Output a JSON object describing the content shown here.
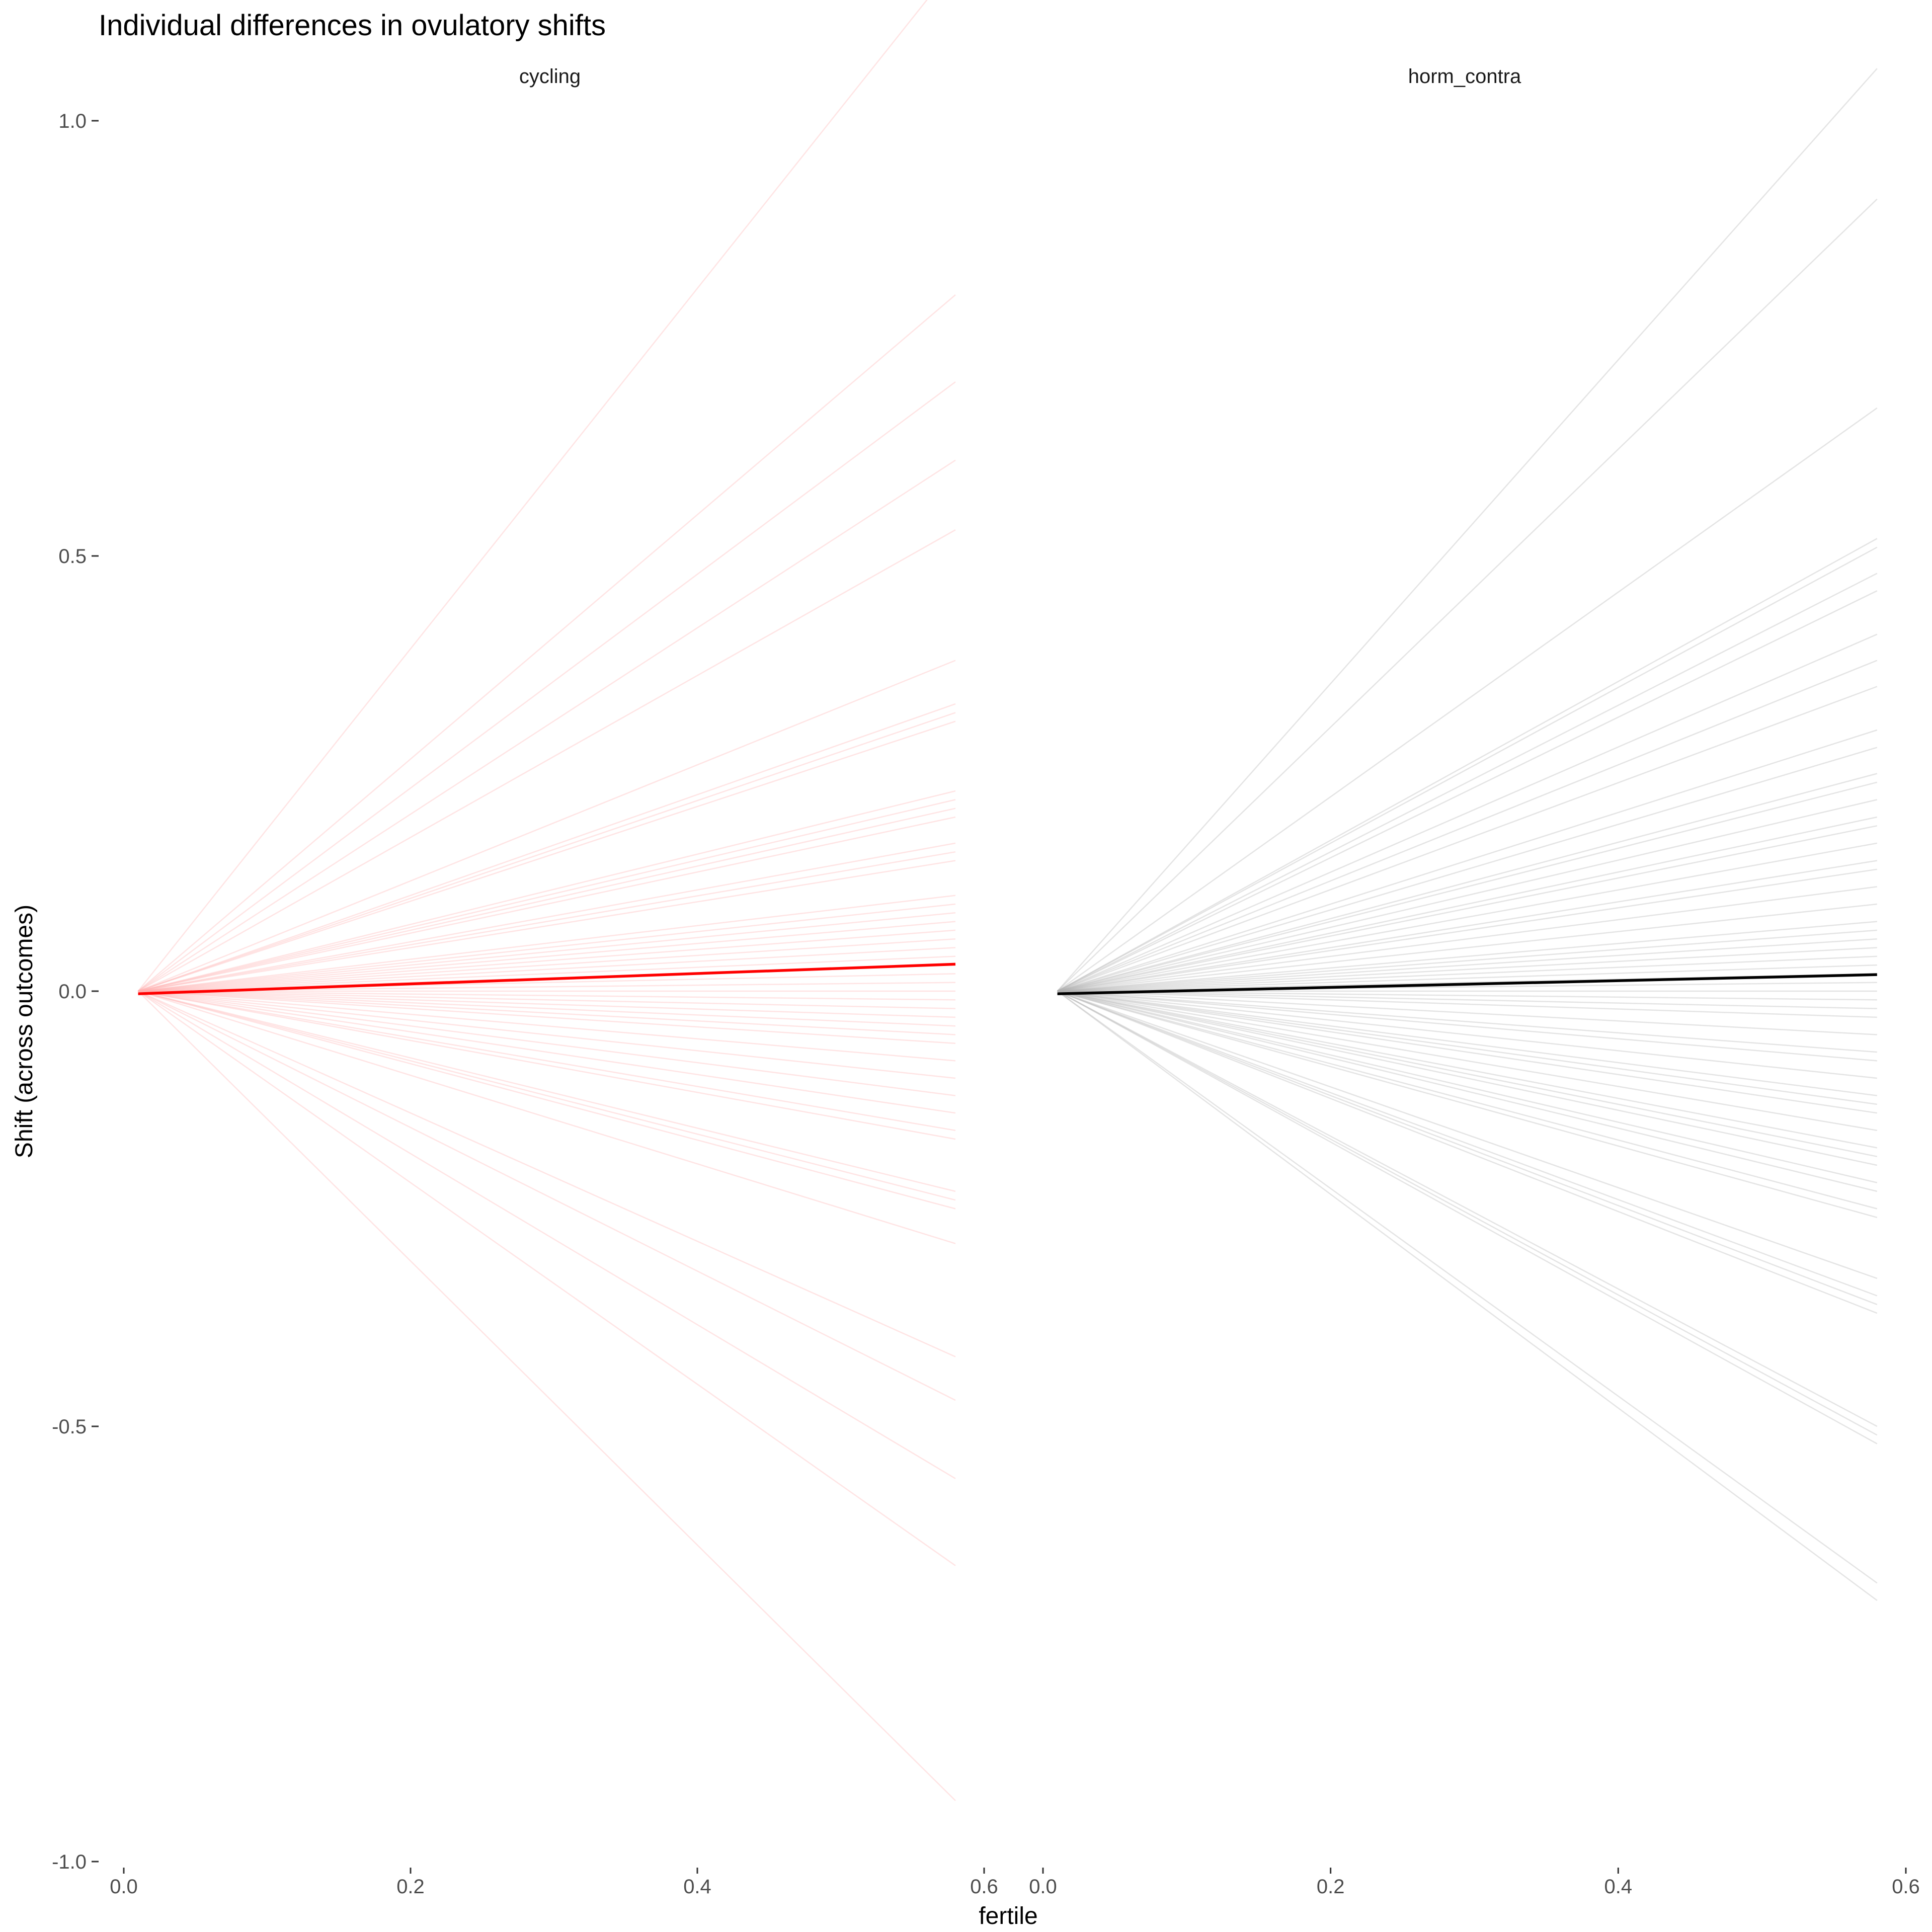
{
  "chart_data": {
    "type": "line",
    "title": "Individual differences in ovulatory shifts",
    "xlabel": "fertile",
    "ylabel": "Shift (across outcomes)",
    "xlim": [
      0.0,
      0.6
    ],
    "ylim": [
      -1.0,
      1.0
    ],
    "x_ticks": [
      "0.0",
      "0.2",
      "0.4",
      "0.6"
    ],
    "y_ticks": [
      "-1.0",
      "-0.5",
      "0.0",
      "0.5",
      "1.0"
    ],
    "grid": false,
    "legend": "none",
    "panels": [
      {
        "label": "cycling",
        "color": "#ff0000",
        "individual_color": "#ffb3b3",
        "mean_line": {
          "x": [
            0.01,
            0.58
          ],
          "y": [
            -0.003,
            0.031
          ]
        },
        "individual_lines": {
          "x": [
            0.01,
            0.58
          ],
          "end_y": [
            1.18,
            0.8,
            0.7,
            0.61,
            0.53,
            0.38,
            0.33,
            0.32,
            0.31,
            0.23,
            0.22,
            0.21,
            0.2,
            0.17,
            0.16,
            0.15,
            0.11,
            0.1,
            0.09,
            0.08,
            0.07,
            0.06,
            0.05,
            0.04,
            0.03,
            0.02,
            0.01,
            0.0,
            -0.01,
            -0.02,
            -0.03,
            -0.04,
            -0.05,
            -0.06,
            -0.08,
            -0.1,
            -0.12,
            -0.14,
            -0.16,
            -0.17,
            -0.23,
            -0.24,
            -0.25,
            -0.29,
            -0.42,
            -0.47,
            -0.56,
            -0.66,
            -0.93
          ]
        }
      },
      {
        "label": "horm_contra",
        "color": "#000000",
        "individual_color": "#b3b3b3",
        "mean_line": {
          "x": [
            0.01,
            0.58
          ],
          "y": [
            -0.003,
            0.019
          ]
        },
        "individual_lines": {
          "x": [
            0.01,
            0.58
          ],
          "end_y": [
            1.06,
            0.91,
            0.67,
            0.52,
            0.51,
            0.48,
            0.46,
            0.41,
            0.38,
            0.35,
            0.3,
            0.28,
            0.25,
            0.24,
            0.22,
            0.2,
            0.19,
            0.17,
            0.15,
            0.14,
            0.12,
            0.1,
            0.08,
            0.07,
            0.06,
            0.05,
            0.04,
            0.03,
            0.02,
            0.01,
            0.0,
            -0.01,
            -0.02,
            -0.03,
            -0.05,
            -0.07,
            -0.08,
            -0.1,
            -0.12,
            -0.13,
            -0.14,
            -0.16,
            -0.18,
            -0.19,
            -0.2,
            -0.22,
            -0.23,
            -0.25,
            -0.26,
            -0.33,
            -0.35,
            -0.36,
            -0.37,
            -0.5,
            -0.51,
            -0.52,
            -0.68,
            -0.7
          ]
        }
      }
    ]
  }
}
